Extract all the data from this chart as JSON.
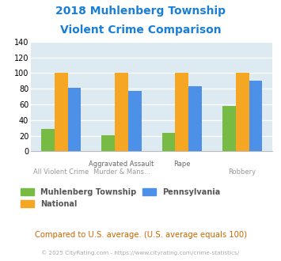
{
  "title_line1": "2018 Muhlenberg Township",
  "title_line2": "Violent Crime Comparison",
  "title_color": "#1a7fd4",
  "series": {
    "Muhlenberg Township": [
      29,
      21,
      24,
      58
    ],
    "National": [
      100,
      100,
      100,
      100
    ],
    "Pennsylvania": [
      81,
      77,
      83,
      90
    ]
  },
  "colors": {
    "Muhlenberg Township": "#77bb44",
    "National": "#f5a623",
    "Pennsylvania": "#4d90e8"
  },
  "ylim": [
    0,
    140
  ],
  "yticks": [
    0,
    20,
    40,
    60,
    80,
    100,
    120,
    140
  ],
  "plot_bg": "#ddeaf2",
  "footer_text": "Compared to U.S. average. (U.S. average equals 100)",
  "footer_color": "#cc6600",
  "copyright_text": "© 2025 CityRating.com - https://www.cityrating.com/crime-statistics/",
  "copyright_color": "#aaaaaa",
  "bar_width": 0.22,
  "x_label_top": [
    "",
    "Aggravated Assault",
    "Rape",
    ""
  ],
  "x_label_bot": [
    "All Violent Crime",
    "Murder & Mans...",
    "",
    "Robbery"
  ]
}
